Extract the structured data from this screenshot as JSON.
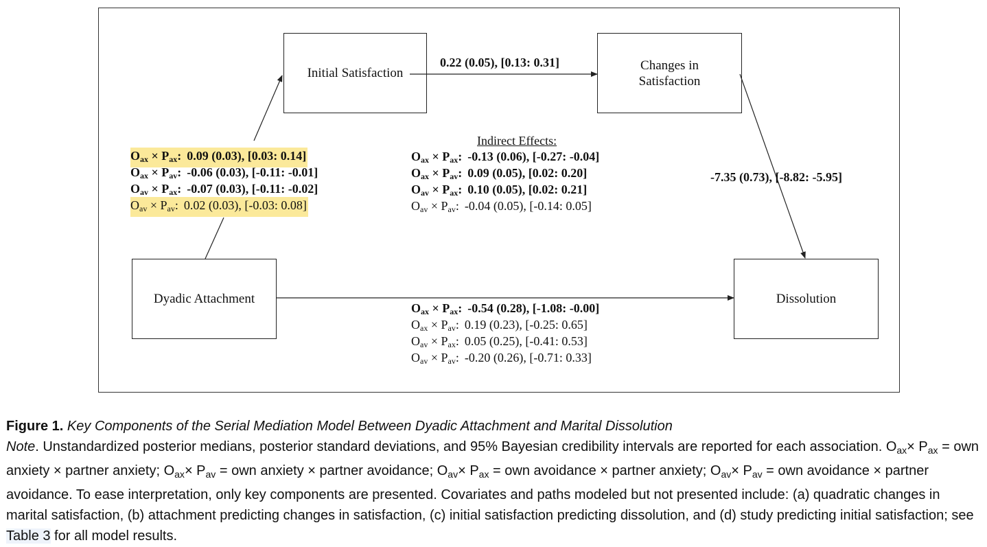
{
  "boxes": {
    "initial": "Initial Satisfaction",
    "changes_line1": "Changes in",
    "changes_line2": "Satisfaction",
    "dyadic": "Dyadic Attachment",
    "dissolution": "Dissolution"
  },
  "path_initial_to_changes": "0.22 (0.05), [0.13: 0.31]",
  "path_changes_to_dissolution": "-7.35 (0.73), [-8.82: -5.95]",
  "attachment_to_initial": [
    {
      "label_main": "O",
      "label_sub1": "ax",
      "label_mid": " × P",
      "label_sub2": "ax",
      "label_end": ":",
      "value": "0.09 (0.03), [0.03: 0.14]",
      "bold": true,
      "highlight": true
    },
    {
      "label_main": "O",
      "label_sub1": "ax",
      "label_mid": " × P",
      "label_sub2": "av",
      "label_end": ":",
      "value": "-0.06 (0.03), [-0.11: -0.01]",
      "bold": true,
      "highlight": false
    },
    {
      "label_main": "O",
      "label_sub1": "av",
      "label_mid": " × P",
      "label_sub2": "ax",
      "label_end": ":",
      "value": "-0.07 (0.03), [-0.11: -0.02]",
      "bold": true,
      "highlight": false
    },
    {
      "label_main": "O",
      "label_sub1": "av",
      "label_mid": " × P",
      "label_sub2": "av",
      "label_end": ":",
      "value": "0.02 (0.03), [-0.03: 0.08]",
      "bold": false,
      "highlight": true
    }
  ],
  "indirect_effects_title": "Indirect Effects:",
  "indirect_effects": [
    {
      "label_main": "O",
      "label_sub1": "ax",
      "label_mid": " × P",
      "label_sub2": "ax",
      "label_end": ":",
      "value": "-0.13 (0.06), [-0.27: -0.04]",
      "bold": true
    },
    {
      "label_main": "O",
      "label_sub1": "ax",
      "label_mid": " × P",
      "label_sub2": "av",
      "label_end": ":",
      "value": "0.09 (0.05), [0.02: 0.20]",
      "bold": true
    },
    {
      "label_main": "O",
      "label_sub1": "av",
      "label_mid": " × P",
      "label_sub2": "ax",
      "label_end": ":",
      "value": "0.10 (0.05), [0.02: 0.21]",
      "bold": true
    },
    {
      "label_main": "O",
      "label_sub1": "av",
      "label_mid": " × P",
      "label_sub2": "av",
      "label_end": ":",
      "value": "-0.04 (0.05), [-0.14: 0.05]",
      "bold": false
    }
  ],
  "direct_effects": [
    {
      "label_main": "O",
      "label_sub1": "ax",
      "label_mid": " × P",
      "label_sub2": "ax",
      "label_end": ":",
      "value": "-0.54 (0.28), [-1.08: -0.00]",
      "bold": true
    },
    {
      "label_main": "O",
      "label_sub1": "ax",
      "label_mid": " × P",
      "label_sub2": "av",
      "label_end": ":",
      "value": "0.19 (0.23), [-0.25: 0.65]",
      "bold": false
    },
    {
      "label_main": "O",
      "label_sub1": "av",
      "label_mid": " × P",
      "label_sub2": "ax",
      "label_end": ":",
      "value": "0.05 (0.25), [-0.41: 0.53]",
      "bold": false
    },
    {
      "label_main": "O",
      "label_sub1": "av",
      "label_mid": " × P",
      "label_sub2": "av",
      "label_end": ":",
      "value": "-0.20 (0.26), [-0.71: 0.33]",
      "bold": false
    }
  ],
  "caption": {
    "figure_label": "Figure 1.",
    "figure_title": "Key Components of the Serial Mediation Model Between Dyadic Attachment and Marital Dissolution",
    "note_label": "Note",
    "note_p1": ". Unstandardized posterior medians, posterior standard deviations, and 95% Bayesian credibility intervals are reported for each association. ",
    "def1_a": "O",
    "def1_b": "ax",
    "def1_c": "× P",
    "def1_d": "ax",
    "def1_text": " = own anxiety × partner anxiety; ",
    "def2_a": "O",
    "def2_b": "ax",
    "def2_c": "× P",
    "def2_d": "av",
    "def2_text": " = own anxiety × partner avoidance; ",
    "def3_a": "O",
    "def3_b": "av",
    "def3_c": "× P",
    "def3_d": "ax",
    "def3_text": " = own avoidance × partner anxiety; ",
    "def4_a": "O",
    "def4_b": "av",
    "def4_c": "× P",
    "def4_d": "av",
    "def4_text": " = own avoidance × partner avoidance. To ease interpretation, only key components are presented. Covariates and paths modeled but not presented include: (a) quadratic changes in marital satisfaction, (b) attachment predicting changes in satisfaction, (c) initial satisfaction predicting dissolution, and (d) study predicting initial satisfaction; see ",
    "table_ref": "Table 3",
    "note_end": " for all model results."
  }
}
